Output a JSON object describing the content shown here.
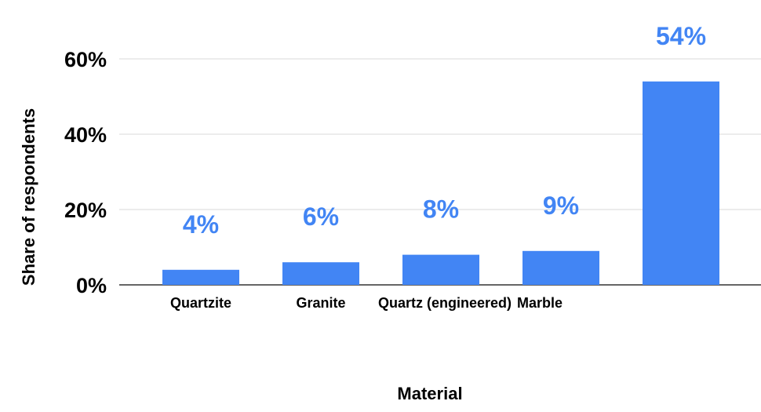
{
  "chart_data": {
    "type": "bar",
    "categories": [
      "Quartzite",
      "Granite",
      "Quartz (engineered)",
      "Marble",
      ""
    ],
    "values": [
      4,
      6,
      8,
      9,
      54
    ],
    "data_labels": [
      "4%",
      "6%",
      "8%",
      "9%",
      "54%"
    ],
    "title": "",
    "xlabel": "Material",
    "ylabel": "Share of respondents",
    "ylim": [
      0,
      60
    ],
    "yticks": [
      0,
      20,
      40,
      60
    ],
    "ytick_labels": [
      "0%",
      "20%",
      "40%",
      "60%"
    ],
    "grid": true,
    "legend": "none",
    "colors": {
      "bar": "#4285f4",
      "label": "#4285f4",
      "grid": "#d9d9d9",
      "axis": "#333333"
    }
  }
}
